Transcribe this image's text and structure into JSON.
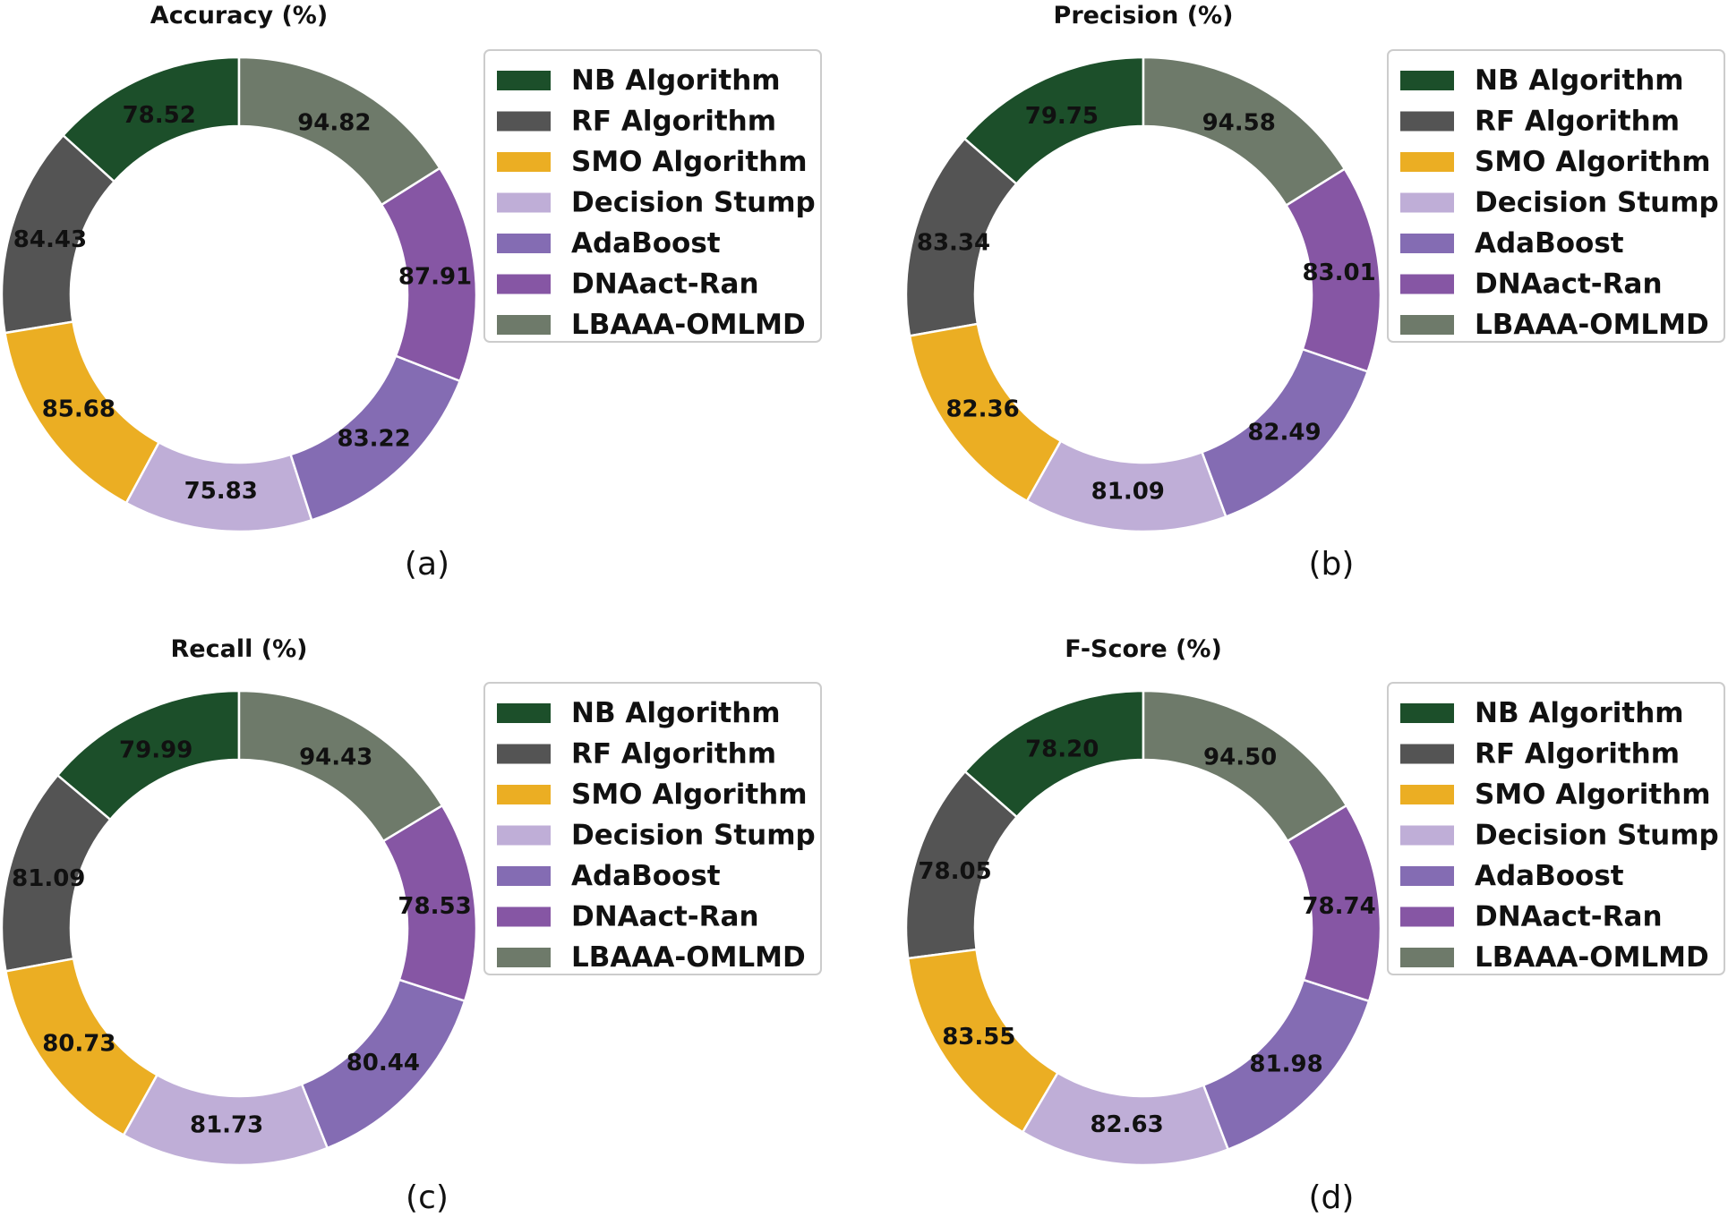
{
  "chart_data": [
    {
      "type": "pie",
      "style": "donut",
      "panel_label": "(a)",
      "title": "Accuracy (%)",
      "categories": [
        "NB Algorithm",
        "RF Algorithm",
        "SMO Algorithm",
        "Decision Stump",
        "AdaBoost",
        "DNAact-Ran",
        "LBAAA-OMLMD"
      ],
      "values": [
        78.52,
        84.43,
        85.68,
        75.83,
        83.22,
        87.91,
        94.82
      ],
      "value_labels": [
        "78.52",
        "84.43",
        "85.68",
        "75.83",
        "83.22",
        "87.91",
        "94.82"
      ],
      "legend_position": "right"
    },
    {
      "type": "pie",
      "style": "donut",
      "panel_label": "(b)",
      "title": "Precision (%)",
      "categories": [
        "NB Algorithm",
        "RF Algorithm",
        "SMO Algorithm",
        "Decision Stump",
        "AdaBoost",
        "DNAact-Ran",
        "LBAAA-OMLMD"
      ],
      "values": [
        79.75,
        83.34,
        82.36,
        81.09,
        82.49,
        83.01,
        94.58
      ],
      "value_labels": [
        "79.75",
        "83.34",
        "82.36",
        "81.09",
        "82.49",
        "83.01",
        "94.58"
      ],
      "legend_position": "right"
    },
    {
      "type": "pie",
      "style": "donut",
      "panel_label": "(c)",
      "title": "Recall (%)",
      "categories": [
        "NB Algorithm",
        "RF Algorithm",
        "SMO Algorithm",
        "Decision Stump",
        "AdaBoost",
        "DNAact-Ran",
        "LBAAA-OMLMD"
      ],
      "values": [
        79.99,
        81.09,
        80.73,
        81.73,
        80.44,
        78.53,
        94.43
      ],
      "value_labels": [
        "79.99",
        "81.09",
        "80.73",
        "81.73",
        "80.44",
        "78.53",
        "94.43"
      ],
      "legend_position": "right"
    },
    {
      "type": "pie",
      "style": "donut",
      "panel_label": "(d)",
      "title": "F-Score (%)",
      "categories": [
        "NB Algorithm",
        "RF Algorithm",
        "SMO Algorithm",
        "Decision Stump",
        "AdaBoost",
        "DNAact-Ran",
        "LBAAA-OMLMD"
      ],
      "values": [
        78.2,
        78.05,
        83.55,
        82.63,
        81.98,
        78.74,
        94.5
      ],
      "value_labels": [
        "78.20",
        "78.05",
        "83.55",
        "82.63",
        "81.98",
        "78.74",
        "94.50"
      ],
      "legend_position": "right"
    }
  ],
  "colors": [
    "#1c4f2a",
    "#545454",
    "#ebae23",
    "#bfaed7",
    "#846cb3",
    "#8656a4",
    "#6e7a6a"
  ]
}
